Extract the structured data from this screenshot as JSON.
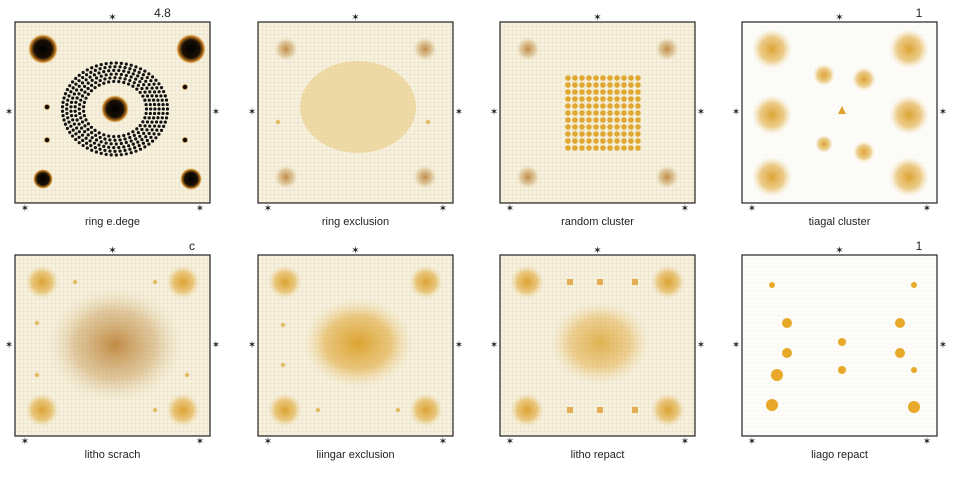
{
  "panels": [
    {
      "label": "ring e.dege",
      "corner": "4.8"
    },
    {
      "label": "ring exclusion"
    },
    {
      "label": "random cluster"
    },
    {
      "label": "tiagal cluster",
      "corner": "1"
    },
    {
      "label": "litho scrach",
      "corner": "c"
    },
    {
      "label": "liingar exclusion"
    },
    {
      "label": "litho repact"
    },
    {
      "label": "liago repact",
      "corner": "1"
    }
  ]
}
